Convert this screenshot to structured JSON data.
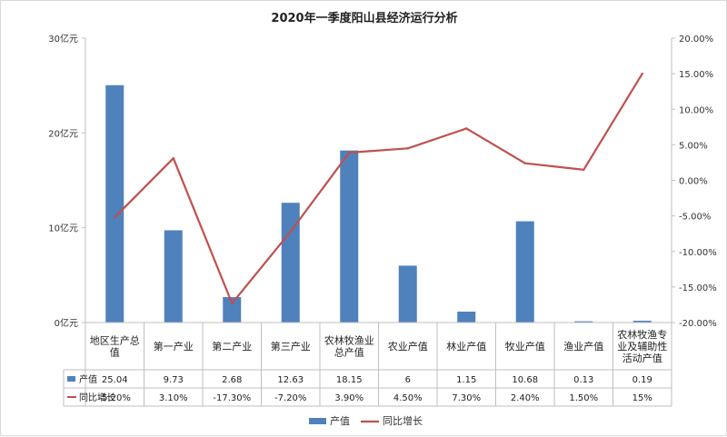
{
  "chart_data": {
    "type": "bar+line",
    "title": "2020年一季度阳山县经济运行分析",
    "categories": [
      [
        "地区生产总",
        "值"
      ],
      [
        "第一产业"
      ],
      [
        "第二产业"
      ],
      [
        "第三产业"
      ],
      [
        "农林牧渔业",
        "总产值"
      ],
      [
        "农业产值"
      ],
      [
        "林业产值"
      ],
      [
        "牧业产值"
      ],
      [
        "渔业产值"
      ],
      [
        "农林牧渔专",
        "业及辅助性",
        "活动产值"
      ]
    ],
    "series": [
      {
        "name": "产值",
        "axis": "left",
        "color": "#4f81bd",
        "values": [
          25.04,
          9.73,
          2.68,
          12.63,
          18.15,
          6,
          1.15,
          10.68,
          0.13,
          0.19
        ],
        "labels": [
          "25.04",
          "9.73",
          "2.68",
          "12.63",
          "18.15",
          "6",
          "1.15",
          "10.68",
          "0.13",
          "0.19"
        ]
      },
      {
        "name": "同比增长",
        "axis": "right",
        "color": "#c0504d",
        "values": [
          -5.2,
          3.1,
          -17.3,
          -7.2,
          3.9,
          4.5,
          7.3,
          2.4,
          1.5,
          15
        ],
        "labels": [
          "-5.20%",
          "3.10%",
          "-17.30%",
          "-7.20%",
          "3.90%",
          "4.50%",
          "7.30%",
          "2.40%",
          "1.50%",
          "15%"
        ]
      }
    ],
    "left_axis": {
      "ylim": [
        0,
        30
      ],
      "ticks": [
        {
          "value": 0,
          "label": "0亿元"
        },
        {
          "value": 10,
          "label": "10亿元"
        },
        {
          "value": 20,
          "label": "20亿元"
        },
        {
          "value": 30,
          "label": "30亿元"
        }
      ]
    },
    "right_axis": {
      "ylim": [
        -20,
        20
      ],
      "ticks": [
        {
          "value": 20,
          "label": "20.00%"
        },
        {
          "value": 15,
          "label": "15.00%"
        },
        {
          "value": 10,
          "label": "10.00%"
        },
        {
          "value": 5,
          "label": "5.00%"
        },
        {
          "value": 0,
          "label": "0.00%"
        },
        {
          "value": -5,
          "label": "-5.00%"
        },
        {
          "value": -10,
          "label": "-10.00%"
        },
        {
          "value": -15,
          "label": "-15.00%"
        },
        {
          "value": -20,
          "label": "-20.00%"
        }
      ]
    },
    "grid": false,
    "data_table": true,
    "legend_position": "bottom"
  }
}
